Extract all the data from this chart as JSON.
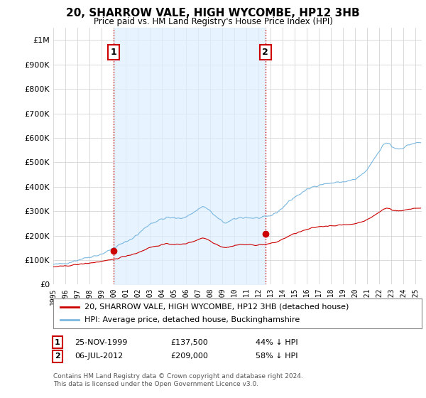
{
  "title": "20, SHARROW VALE, HIGH WYCOMBE, HP12 3HB",
  "subtitle": "Price paid vs. HM Land Registry's House Price Index (HPI)",
  "footer": "Contains HM Land Registry data © Crown copyright and database right 2024.\nThis data is licensed under the Open Government Licence v3.0.",
  "legend_line1": "20, SHARROW VALE, HIGH WYCOMBE, HP12 3HB (detached house)",
  "legend_line2": "HPI: Average price, detached house, Buckinghamshire",
  "annotation1_date": "25-NOV-1999",
  "annotation1_price": "£137,500",
  "annotation1_hpi": "44% ↓ HPI",
  "annotation2_date": "06-JUL-2012",
  "annotation2_price": "£209,000",
  "annotation2_hpi": "58% ↓ HPI",
  "hpi_color": "#7ab8e0",
  "price_color": "#cc0000",
  "background_color": "#ffffff",
  "grid_color": "#cccccc",
  "annotation_box_color": "#cc0000",
  "shade_color": "#ddeeff",
  "ylim": [
    0,
    1050000
  ],
  "yticks": [
    0,
    100000,
    200000,
    300000,
    400000,
    500000,
    600000,
    700000,
    800000,
    900000,
    1000000
  ],
  "purchase1_year": 2000.0,
  "purchase1_value": 137500,
  "purchase2_year": 2012.55,
  "purchase2_value": 209000,
  "xlim_start": 1995.4,
  "xlim_end": 2025.5
}
